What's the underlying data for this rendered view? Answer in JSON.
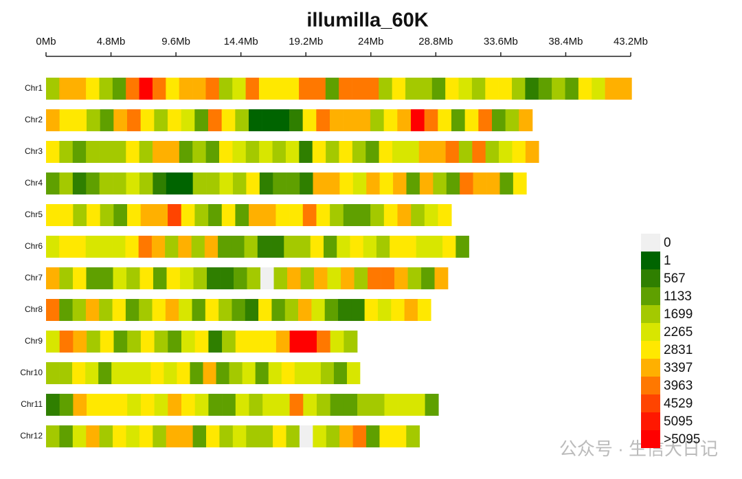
{
  "chart_data": {
    "type": "chromosome_heatmap",
    "title": "illumilla_60K",
    "xlim": [
      0,
      43.2
    ],
    "xticks": [
      {
        "value": 0,
        "label": "0Mb"
      },
      {
        "value": 4.8,
        "label": "4.8Mb"
      },
      {
        "value": 9.6,
        "label": "9.6Mb"
      },
      {
        "value": 14.4,
        "label": "14.4Mb"
      },
      {
        "value": 19.2,
        "label": "19.2Mb"
      },
      {
        "value": 24,
        "label": "24Mb"
      },
      {
        "value": 28.8,
        "label": "28.8Mb"
      },
      {
        "value": 33.6,
        "label": "33.6Mb"
      },
      {
        "value": 38.4,
        "label": "38.4Mb"
      },
      {
        "value": 43.2,
        "label": "43.2Mb"
      }
    ],
    "legend": {
      "breaks": [
        0,
        1,
        567,
        1133,
        1699,
        2265,
        2831,
        3397,
        3963,
        4529,
        5095
      ],
      "overflow_label": ">5095",
      "colors": [
        "#f0f0f0",
        "#006400",
        "#2f7f00",
        "#5fa000",
        "#a4c900",
        "#d8e600",
        "#ffe800",
        "#ffb000",
        "#ff7800",
        "#ff4400",
        "#ff1800",
        "#ff0000"
      ]
    },
    "chromosomes": [
      {
        "name": "Chr1",
        "length": 43.27,
        "values": [
          2000,
          3700,
          3700,
          3100,
          2000,
          1400,
          4200,
          5300,
          4200,
          3100,
          3700,
          3700,
          4200,
          2000,
          2500,
          4200,
          3100,
          3100,
          3100,
          4200,
          4200,
          1400,
          4200,
          4200,
          4200,
          2000,
          3100,
          2000,
          2000,
          1400,
          3100,
          2500,
          2000,
          3100,
          3100,
          2000,
          850,
          1400,
          2000,
          1400,
          3100,
          2500,
          3700,
          3700
        ]
      },
      {
        "name": "Chr2",
        "length": 35.94,
        "values": [
          3700,
          3100,
          3100,
          2000,
          1400,
          3700,
          4200,
          3100,
          2000,
          3100,
          2500,
          1400,
          4200,
          3100,
          2000,
          300,
          300,
          300,
          850,
          3100,
          4200,
          3700,
          3700,
          3700,
          2000,
          3100,
          3700,
          5300,
          4200,
          3100,
          1400,
          3100,
          4200,
          1400,
          2000,
          3700
        ]
      },
      {
        "name": "Chr3",
        "length": 36.41,
        "values": [
          3100,
          2000,
          1400,
          2000,
          2000,
          2000,
          3100,
          2000,
          3700,
          3700,
          1400,
          2000,
          1400,
          3100,
          2500,
          2000,
          2500,
          2000,
          2500,
          850,
          3100,
          2000,
          3100,
          2000,
          1400,
          3100,
          2500,
          2500,
          3700,
          3700,
          4200,
          2000,
          4200,
          2000,
          2500,
          3100,
          3700
        ]
      },
      {
        "name": "Chr4",
        "length": 35.5,
        "values": [
          1400,
          2000,
          850,
          1400,
          2000,
          2000,
          2500,
          2000,
          850,
          300,
          300,
          2000,
          2000,
          2500,
          2000,
          3100,
          850,
          1400,
          1400,
          850,
          3700,
          3700,
          3100,
          2500,
          3700,
          3100,
          3700,
          1400,
          3700,
          2000,
          1400,
          4200,
          3700,
          3700,
          1400,
          3100
        ]
      },
      {
        "name": "Chr5",
        "length": 29.96,
        "values": [
          3100,
          3100,
          2000,
          3100,
          2000,
          1400,
          3100,
          3700,
          3700,
          4800,
          3100,
          2000,
          1400,
          3100,
          1400,
          3700,
          3700,
          3100,
          3100,
          4200,
          3100,
          2000,
          1400,
          1400,
          2000,
          3100,
          3700,
          2000,
          2500,
          3100
        ]
      },
      {
        "name": "Chr6",
        "length": 31.25,
        "values": [
          2500,
          3100,
          3100,
          2500,
          2500,
          2500,
          3100,
          4200,
          3700,
          2000,
          3700,
          2000,
          3700,
          1400,
          1400,
          2000,
          850,
          850,
          2000,
          2000,
          3100,
          1400,
          2500,
          3100,
          2500,
          2000,
          3100,
          3100,
          2500,
          2500,
          3100,
          1400
        ]
      },
      {
        "name": "Chr7",
        "length": 29.7,
        "values": [
          3700,
          2000,
          3100,
          1400,
          1400,
          2500,
          2000,
          3100,
          1400,
          3100,
          2500,
          2000,
          850,
          850,
          1400,
          2000,
          0,
          2000,
          3700,
          2000,
          3700,
          2500,
          3700,
          2000,
          4200,
          4200,
          3700,
          2000,
          1400,
          3700
        ]
      },
      {
        "name": "Chr8",
        "length": 28.44,
        "values": [
          4200,
          1400,
          2000,
          3700,
          2000,
          3100,
          1400,
          2000,
          3100,
          3700,
          2500,
          1400,
          3100,
          2000,
          1400,
          850,
          3100,
          1400,
          2000,
          3700,
          2500,
          1400,
          850,
          850,
          3100,
          2500,
          3100,
          3700,
          3100
        ]
      },
      {
        "name": "Chr9",
        "length": 23.0,
        "values": [
          2500,
          4200,
          3700,
          2000,
          3100,
          1400,
          2000,
          3100,
          2000,
          1400,
          2500,
          3100,
          850,
          2000,
          3100,
          3100,
          3100,
          3700,
          5300,
          5300,
          4200,
          2500,
          2000
        ]
      },
      {
        "name": "Chr10",
        "length": 23.2,
        "values": [
          2000,
          2000,
          3100,
          2500,
          1400,
          2500,
          2500,
          2500,
          3100,
          2500,
          3100,
          1400,
          3700,
          1400,
          2000,
          2500,
          1400,
          2500,
          3100,
          2500,
          2500,
          2000,
          1400,
          2500
        ]
      },
      {
        "name": "Chr11",
        "length": 29.0,
        "values": [
          850,
          1400,
          3700,
          3100,
          3100,
          3100,
          2500,
          3100,
          2500,
          3700,
          3100,
          2500,
          1400,
          1400,
          2500,
          2000,
          2500,
          2500,
          4200,
          2500,
          2000,
          1400,
          1400,
          2000,
          2000,
          2500,
          2500,
          2500,
          1400
        ]
      },
      {
        "name": "Chr12",
        "length": 27.6,
        "values": [
          2000,
          1400,
          2500,
          3700,
          2000,
          3100,
          2500,
          3100,
          2000,
          3700,
          3700,
          1400,
          3100,
          2000,
          2500,
          2000,
          2000,
          3100,
          2000,
          0,
          2500,
          2000,
          3700,
          4200,
          1400,
          3100,
          3100,
          2000
        ]
      }
    ],
    "watermark": "公众号 · 生信大日记"
  }
}
